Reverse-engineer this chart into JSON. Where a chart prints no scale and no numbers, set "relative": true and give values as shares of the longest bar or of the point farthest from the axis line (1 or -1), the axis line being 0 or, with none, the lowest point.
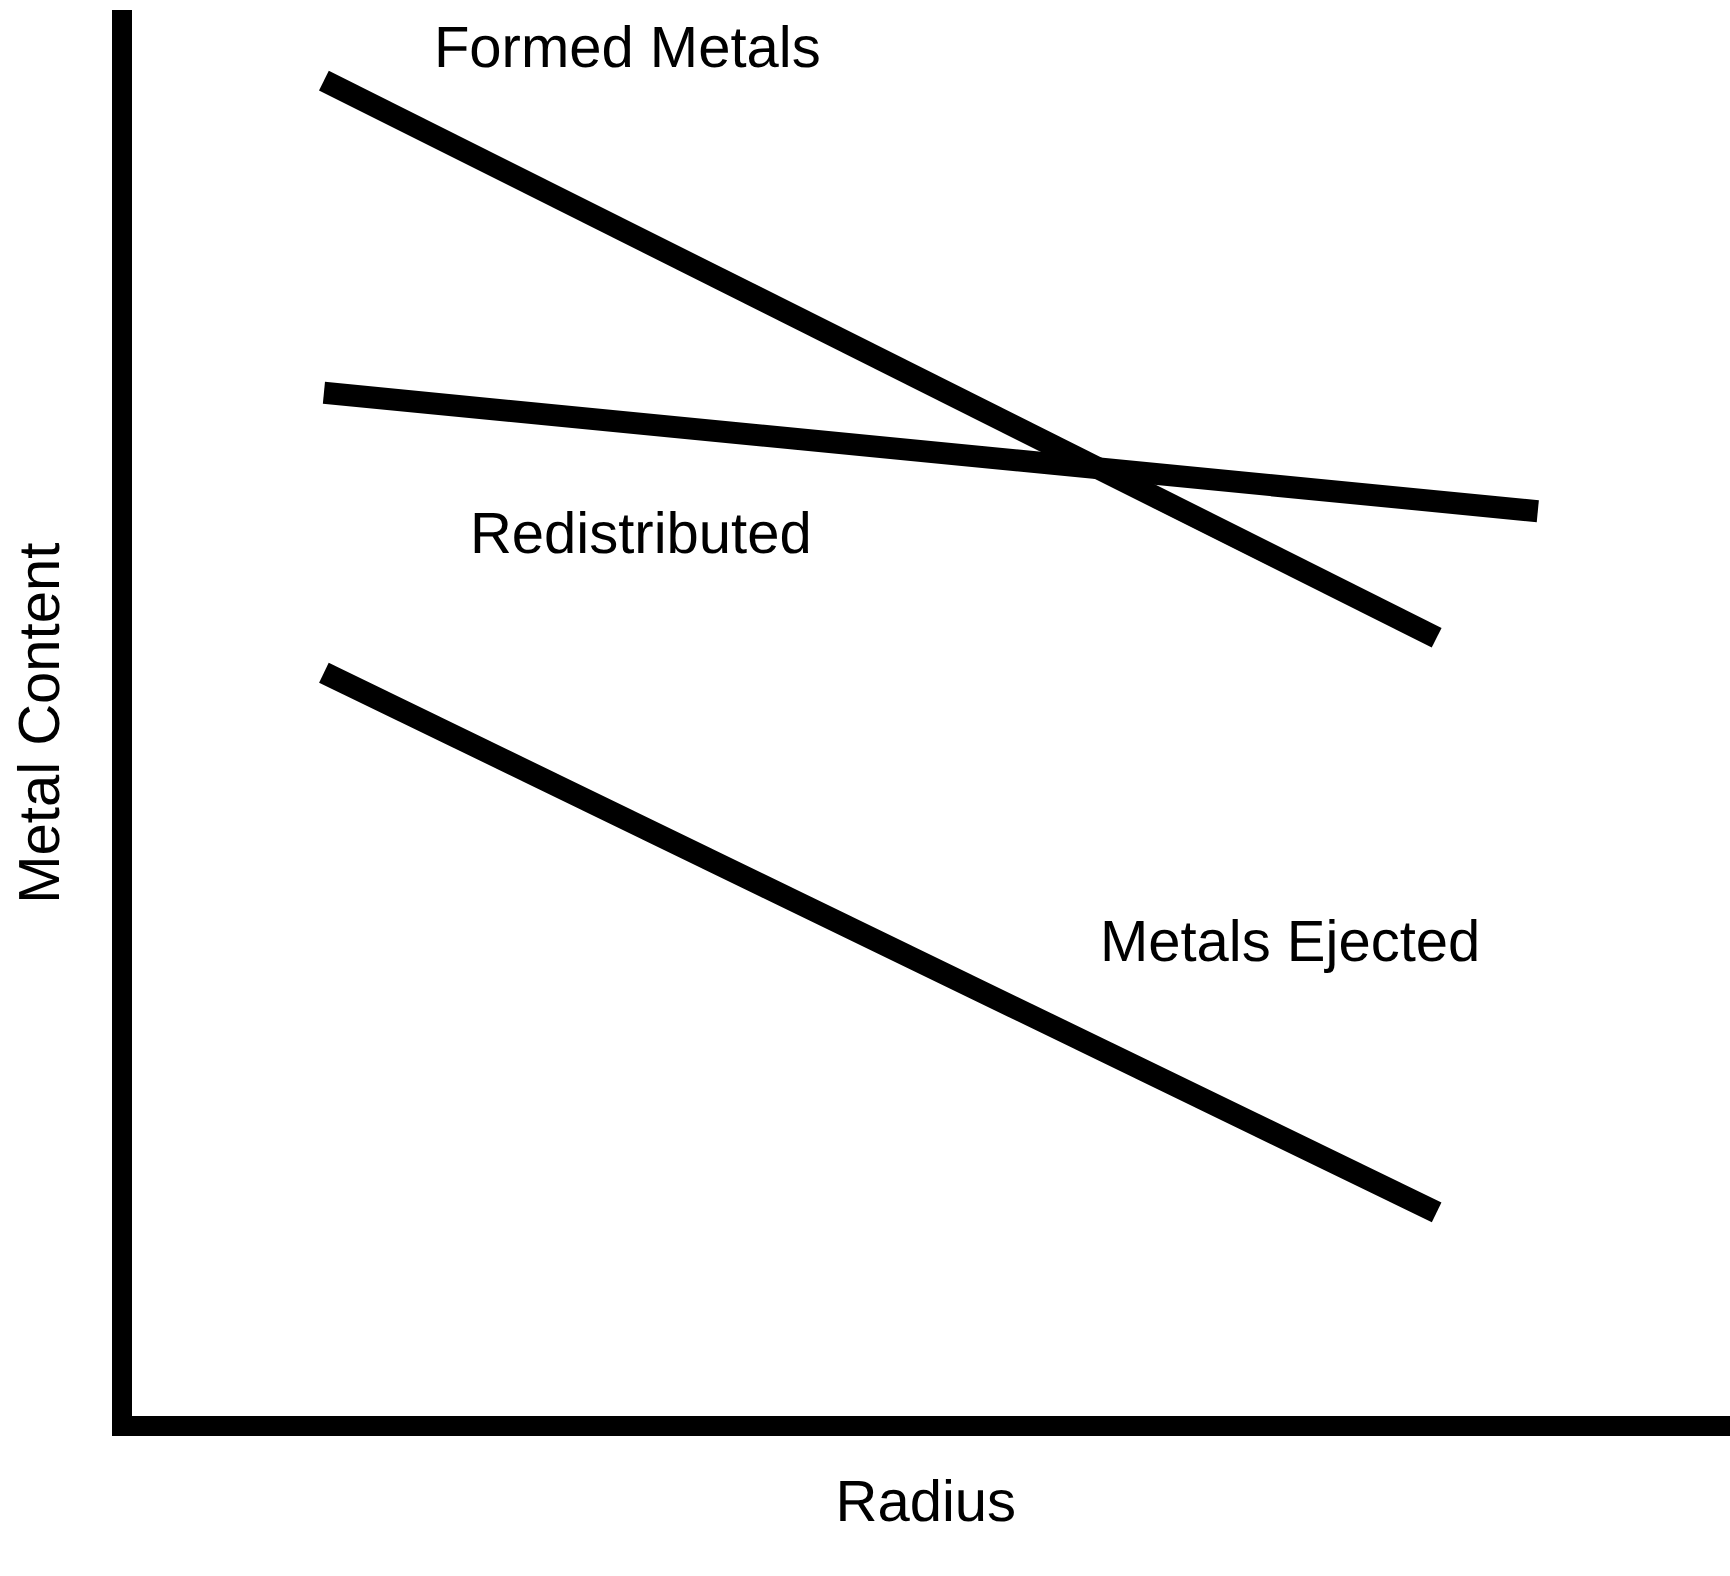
{
  "chart_data": {
    "type": "line",
    "relative": true,
    "xlabel": "Radius",
    "ylabel": "Metal Content",
    "legend": false,
    "grid": false,
    "marker": "none",
    "line_style": "solid",
    "categories": [
      null,
      null,
      null,
      null,
      null,
      null,
      null,
      null,
      null,
      null,
      null,
      null,
      null
    ],
    "series": [
      {
        "name": "Formed Metals",
        "color": "#000000",
        "values": [
          1,
          null,
          null,
          null,
          null,
          null,
          null,
          null,
          null,
          null,
          null,
          0.586,
          null
        ]
      },
      {
        "name": "Redistributed",
        "color": "#000000",
        "values": [
          0.768,
          null,
          null,
          null,
          null,
          null,
          null,
          null,
          null,
          null,
          null,
          null,
          0.68
        ]
      },
      {
        "name": "Metals Ejected",
        "color": "#000000",
        "values": [
          0.56,
          null,
          null,
          null,
          null,
          null,
          null,
          null,
          null,
          null,
          null,
          0.159,
          null
        ]
      }
    ]
  }
}
